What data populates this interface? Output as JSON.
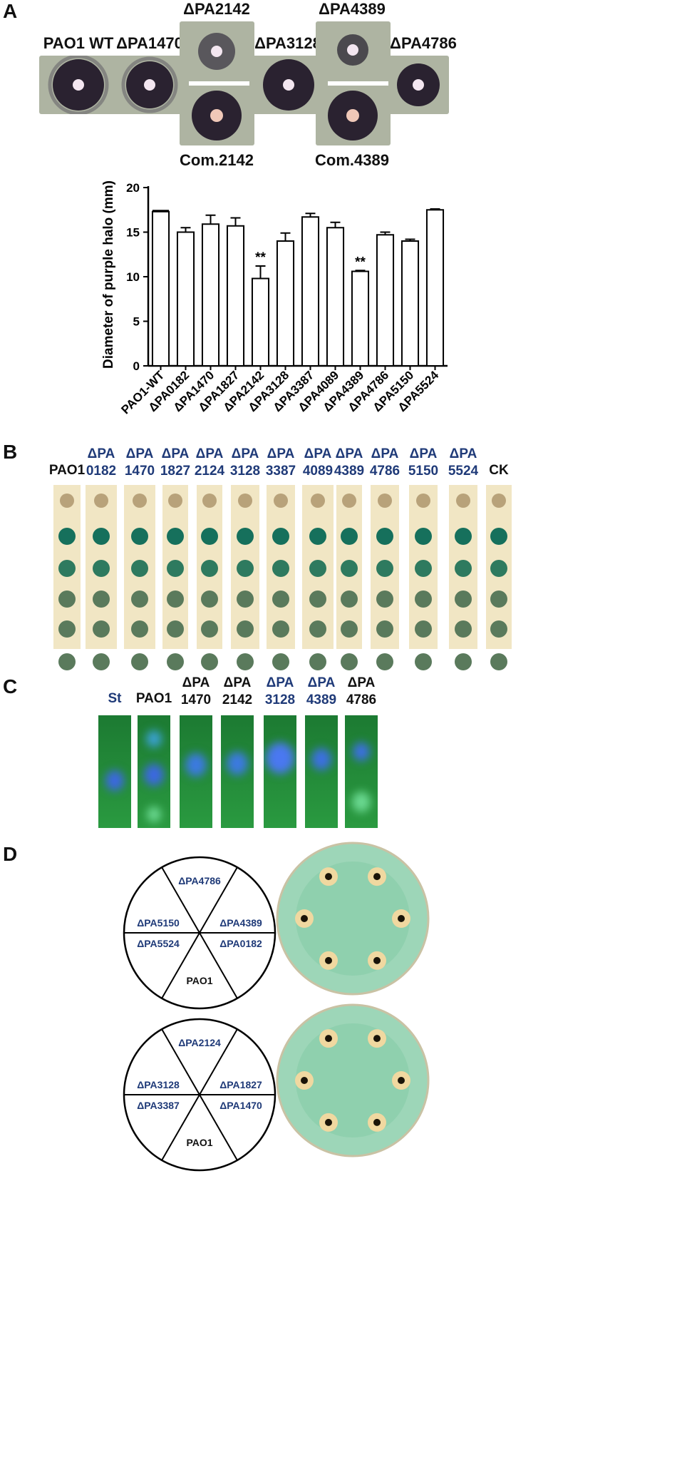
{
  "panels": {
    "a": "A",
    "b": "B",
    "c": "C",
    "d": "D"
  },
  "panel_a": {
    "photos": [
      {
        "label": "PAO1 WT",
        "position": "bottom"
      },
      {
        "label": "ΔPA1470",
        "position": "bottom"
      },
      {
        "label": "ΔPA2142",
        "position": "top",
        "complement": "Com.2142"
      },
      {
        "label": "ΔPA3128",
        "position": "bottom"
      },
      {
        "label": "ΔPA4389",
        "position": "top",
        "complement": "Com.4389"
      },
      {
        "label": "ΔPA4786",
        "position": "bottom"
      }
    ]
  },
  "chart_data": {
    "type": "bar",
    "title": "",
    "xlabel": "",
    "ylabel": "Diameter of purple halo (mm)",
    "ylim": [
      0,
      20
    ],
    "yticks": [
      0,
      5,
      10,
      15,
      20
    ],
    "categories": [
      "PAO1-WT",
      "ΔPA0182",
      "ΔPA1470",
      "ΔPA1827",
      "ΔPA2142",
      "ΔPA3128",
      "ΔPA3387",
      "ΔPA4089",
      "ΔPA4389",
      "ΔPA4786",
      "ΔPA5150",
      "ΔPA5524"
    ],
    "values": [
      17.3,
      15.0,
      15.9,
      15.7,
      9.8,
      14.0,
      16.7,
      15.5,
      10.6,
      14.7,
      14.0,
      17.5
    ],
    "errors": [
      0.0,
      0.5,
      1.0,
      0.9,
      1.4,
      0.9,
      0.4,
      0.6,
      0.1,
      0.3,
      0.2,
      0.1
    ],
    "annotations": [
      {
        "category": "ΔPA2142",
        "text": "**"
      },
      {
        "category": "ΔPA4389",
        "text": "**"
      }
    ],
    "bar_color": "#ffffff",
    "edge_color": "#000000"
  },
  "panel_b": {
    "strips": [
      {
        "l1": "PAO1",
        "l2": "",
        "blue": false
      },
      {
        "l1": "ΔPA",
        "l2": "0182",
        "blue": true
      },
      {
        "l1": "ΔPA",
        "l2": "1470",
        "blue": true
      },
      {
        "l1": "ΔPA",
        "l2": "1827",
        "blue": true
      },
      {
        "l1": "ΔPA",
        "l2": "2124",
        "blue": true
      },
      {
        "l1": "ΔPA",
        "l2": "3128",
        "blue": true
      },
      {
        "l1": "ΔPA",
        "l2": "3387",
        "blue": true
      },
      {
        "l1": "ΔPA",
        "l2": "4089",
        "blue": true
      },
      {
        "l1": "ΔPA",
        "l2": "4389",
        "blue": true
      },
      {
        "l1": "ΔPA",
        "l2": "4786",
        "blue": true
      },
      {
        "l1": "ΔPA",
        "l2": "5150",
        "blue": true
      },
      {
        "l1": "ΔPA",
        "l2": "5524",
        "blue": true
      },
      {
        "l1": "CK",
        "l2": "",
        "blue": false
      }
    ]
  },
  "panel_c": {
    "lanes": [
      {
        "l1": "St",
        "l2": "",
        "blue": true
      },
      {
        "l1": "PAO1",
        "l2": "",
        "blue": false
      },
      {
        "l1": "ΔPA",
        "l2": "1470",
        "blue": false
      },
      {
        "l1": "ΔPA",
        "l2": "2142",
        "blue": false
      },
      {
        "l1": "ΔPA",
        "l2": "3128",
        "blue": true
      },
      {
        "l1": "ΔPA",
        "l2": "4389",
        "blue": true
      },
      {
        "l1": "ΔPA",
        "l2": "4786",
        "blue": false
      }
    ]
  },
  "panel_d": {
    "plate1": {
      "top": "ΔPA4786",
      "upper_left": "ΔPA5150",
      "upper_right": "ΔPA4389",
      "lower_left": "ΔPA5524",
      "lower_right": "ΔPA0182",
      "bottom": "PAO1"
    },
    "plate2": {
      "top": "ΔPA2124",
      "upper_left": "ΔPA3128",
      "upper_right": "ΔPA1827",
      "lower_left": "ΔPA3387",
      "lower_right": "ΔPA1470",
      "bottom": "PAO1"
    }
  },
  "colors": {
    "halo_bg": "#aeb4a2",
    "strip": "#f1e6c4",
    "dot": "#2f7a5e",
    "tlc": "#1f8a36",
    "plate": "#8fcfb0",
    "blue_text": "#1f3a78"
  }
}
